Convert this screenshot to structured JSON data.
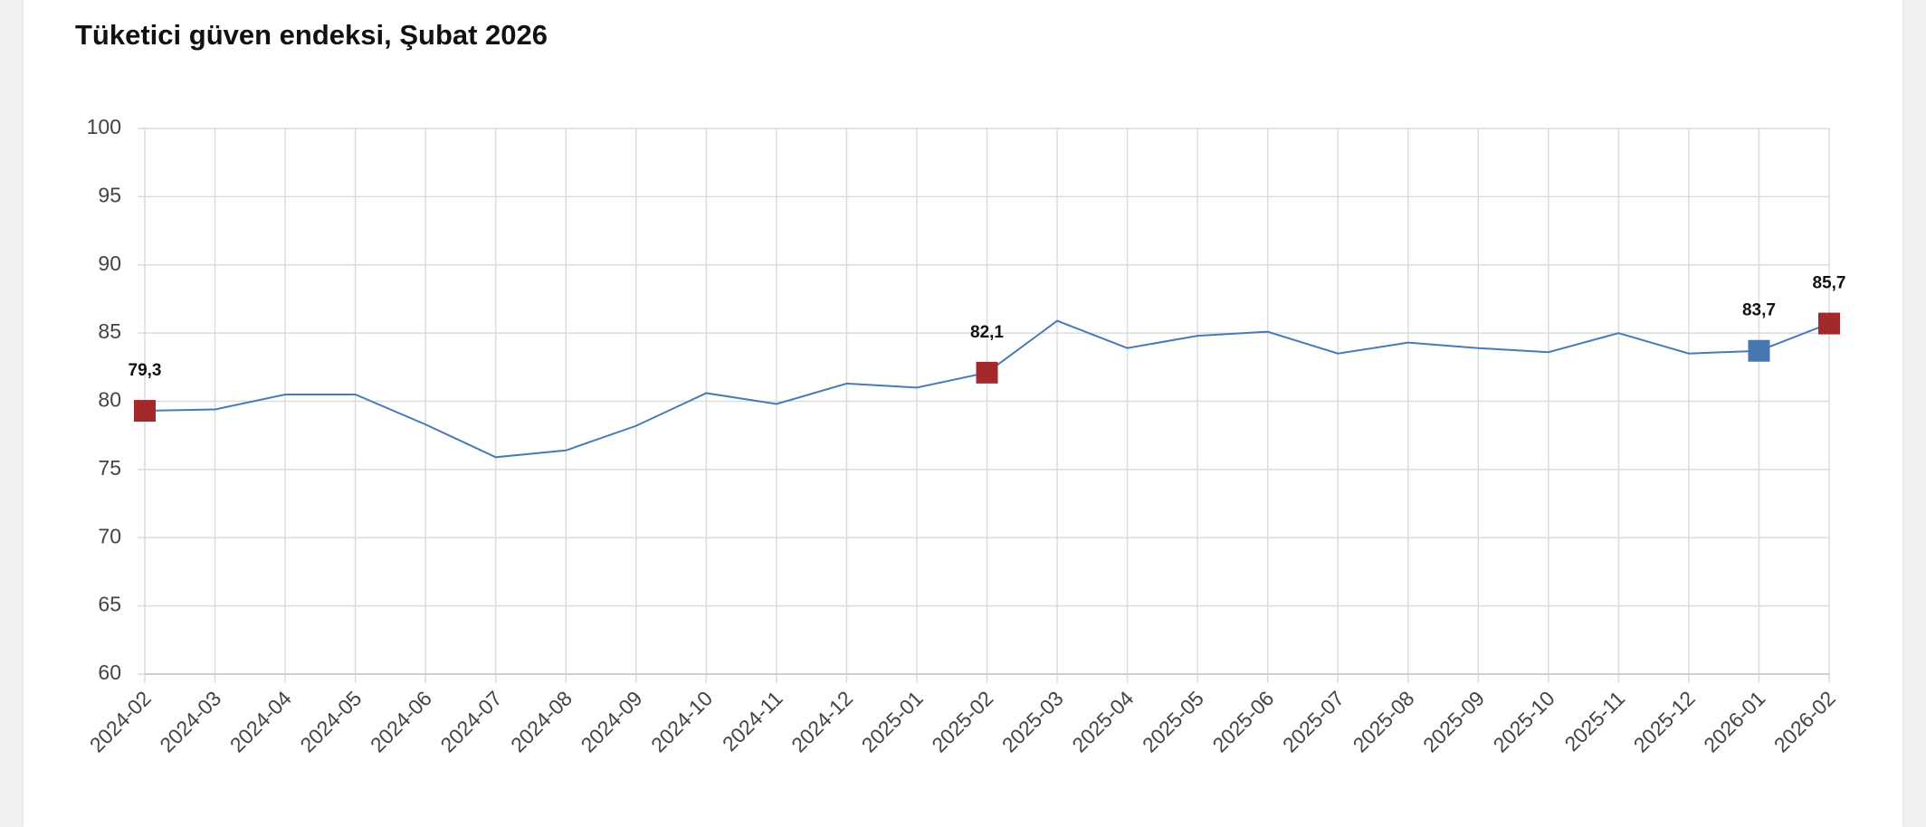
{
  "chart_data": {
    "type": "line",
    "title": "Tüketici güven endeksi, Şubat 2026",
    "x": [
      "2024-02",
      "2024-03",
      "2024-04",
      "2024-05",
      "2024-06",
      "2024-07",
      "2024-08",
      "2024-09",
      "2024-10",
      "2024-11",
      "2024-12",
      "2025-01",
      "2025-02",
      "2025-03",
      "2025-04",
      "2025-05",
      "2025-06",
      "2025-07",
      "2025-08",
      "2025-09",
      "2025-10",
      "2025-11",
      "2025-12",
      "2026-01",
      "2026-02"
    ],
    "series": [
      {
        "color": "#4a7ab5",
        "values": [
          79.3,
          79.4,
          80.5,
          80.5,
          78.3,
          75.9,
          76.4,
          78.2,
          80.6,
          79.8,
          81.3,
          81.0,
          82.1,
          85.9,
          83.9,
          84.8,
          85.1,
          83.5,
          84.3,
          83.9,
          83.6,
          85.0,
          83.5,
          83.7,
          85.7
        ],
        "value_labels": [
          "79,3",
          null,
          null,
          null,
          null,
          null,
          null,
          null,
          null,
          null,
          null,
          null,
          "82,1",
          null,
          null,
          null,
          null,
          null,
          null,
          null,
          null,
          null,
          null,
          "83,7",
          "85,7"
        ],
        "marker_colors": [
          "#a3292b",
          null,
          null,
          null,
          null,
          null,
          null,
          null,
          null,
          null,
          null,
          null,
          "#a3292b",
          null,
          null,
          null,
          null,
          null,
          null,
          null,
          null,
          null,
          null,
          "#4677b1",
          "#a3292b"
        ]
      }
    ],
    "ylim": [
      60,
      100
    ],
    "yticks": [
      60,
      65,
      70,
      75,
      80,
      85,
      90,
      95,
      100
    ],
    "grid": true
  }
}
